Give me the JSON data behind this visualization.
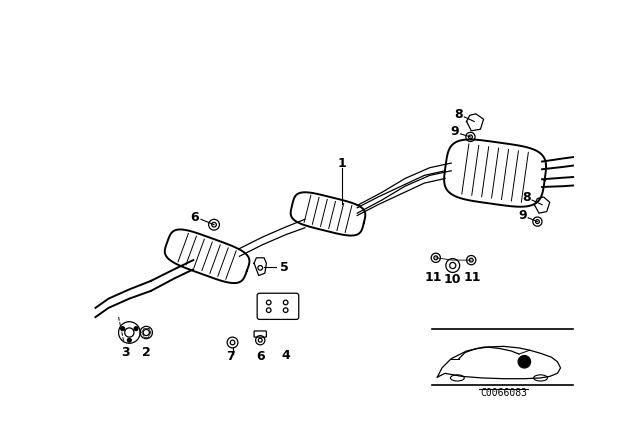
{
  "bg_color": "#ffffff",
  "line_color": "#000000",
  "diagram_code_text": "C0066083",
  "label_fontsize": 9,
  "lw_main": 1.4,
  "lw_thin": 0.9,
  "lw_rib": 0.7
}
